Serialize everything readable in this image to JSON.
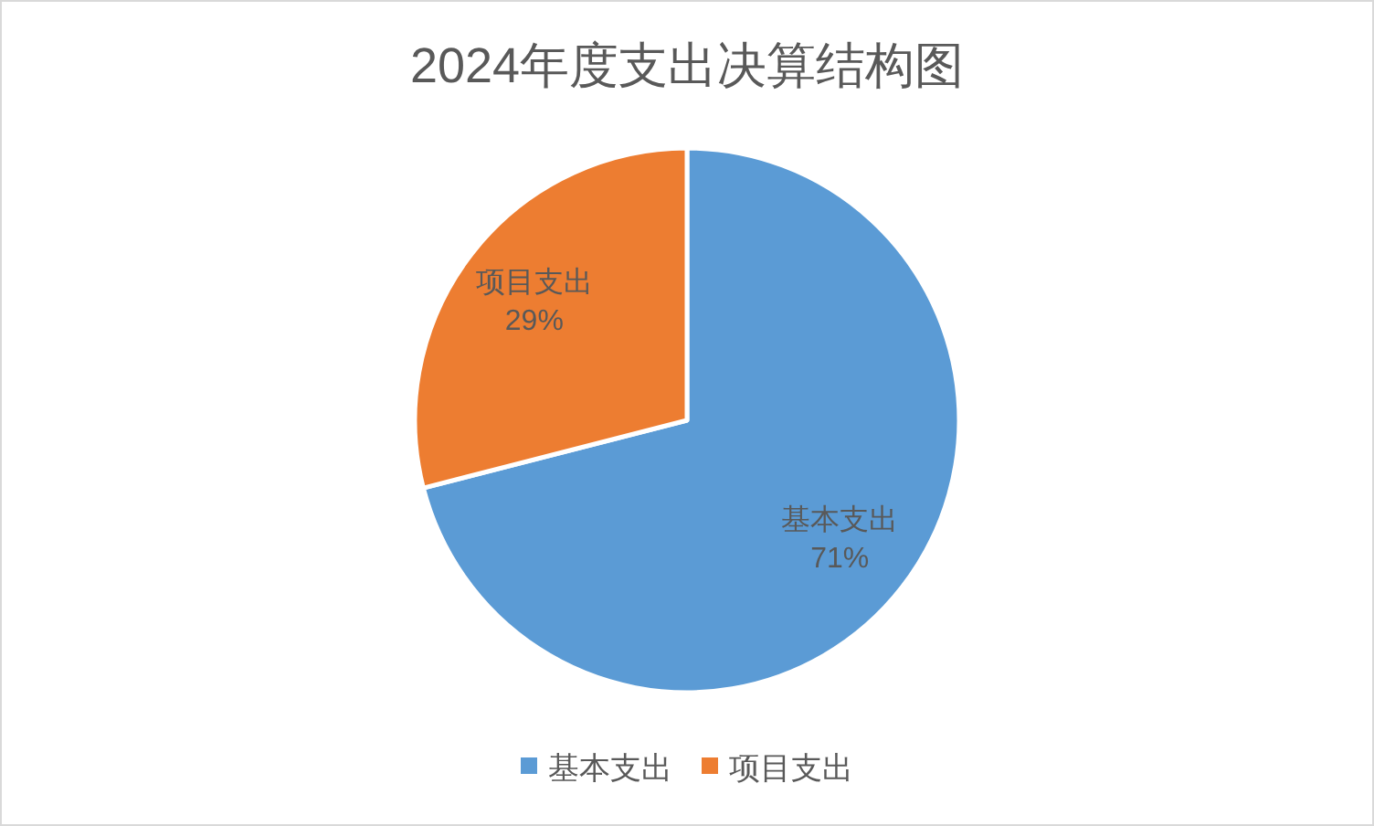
{
  "chart_data": {
    "type": "pie",
    "title": "2024年度支出决算结构图",
    "categories": [
      "基本支出",
      "项目支出"
    ],
    "values": [
      71,
      29
    ],
    "colors": [
      "#5b9bd5",
      "#ed7d31"
    ],
    "value_labels": [
      "71%",
      "29%"
    ],
    "legend": "bottom"
  }
}
